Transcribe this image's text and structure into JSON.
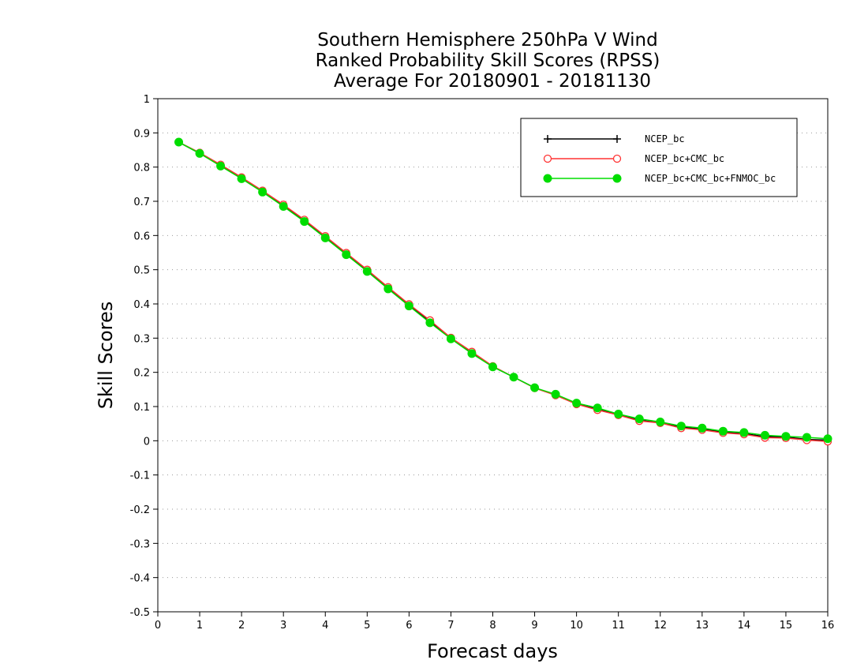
{
  "chart_data": {
    "type": "line",
    "title": [
      "Southern Hemisphere 250hPa V Wind",
      "Ranked Probability Skill Scores (RPSS)",
      "Average For 20180901 - 20181130"
    ],
    "xlabel": "Forecast days",
    "ylabel": "Skill Scores",
    "xlim": [
      0,
      16
    ],
    "ylim": [
      -0.5,
      1
    ],
    "xticks": [
      0,
      1,
      2,
      3,
      4,
      5,
      6,
      7,
      8,
      9,
      10,
      11,
      12,
      13,
      14,
      15,
      16
    ],
    "xtick_labels": [
      "0",
      "1",
      "2",
      "3",
      "4",
      "5",
      "6",
      "7",
      "8",
      "9",
      "10",
      "11",
      "12",
      "13",
      "14",
      "15",
      "16"
    ],
    "yticks": [
      -0.5,
      -0.4,
      -0.3,
      -0.2,
      -0.1,
      0,
      0.1,
      0.2,
      0.3,
      0.4,
      0.5,
      0.6,
      0.7,
      0.8,
      0.9,
      1
    ],
    "ytick_labels": [
      "-0.5",
      "-0.4",
      "-0.3",
      "-0.2",
      "-0.1",
      "0",
      "0.1",
      "0.2",
      "0.3",
      "0.4",
      "0.5",
      "0.6",
      "0.7",
      "0.8",
      "0.9",
      "1"
    ],
    "grid": "horizontal dotted",
    "legend_position": "top-right",
    "x": [
      0.5,
      1,
      1.5,
      2,
      2.5,
      3,
      3.5,
      4,
      4.5,
      5,
      5.5,
      6,
      6.5,
      7,
      7.5,
      8,
      8.5,
      9,
      9.5,
      10,
      10.5,
      11,
      11.5,
      12,
      12.5,
      13,
      13.5,
      14,
      14.5,
      15,
      15.5,
      16
    ],
    "series": [
      {
        "name": "NCEP_bc",
        "color": "#000000",
        "marker": "plus",
        "values": [
          0.873,
          0.84,
          0.805,
          0.768,
          0.728,
          0.687,
          0.643,
          0.595,
          0.546,
          0.497,
          0.446,
          0.396,
          0.348,
          0.3,
          0.257,
          0.217,
          0.186,
          0.155,
          0.134,
          0.108,
          0.092,
          0.076,
          0.06,
          0.053,
          0.04,
          0.034,
          0.025,
          0.021,
          0.012,
          0.011,
          0.004,
          0.002
        ]
      },
      {
        "name": "NCEP_bc+CMC_bc",
        "color": "#ff3333",
        "marker": "open-circle",
        "values": [
          0.873,
          0.842,
          0.807,
          0.77,
          0.731,
          0.69,
          0.646,
          0.598,
          0.549,
          0.5,
          0.449,
          0.399,
          0.352,
          0.301,
          0.26,
          0.218,
          0.186,
          0.154,
          0.133,
          0.107,
          0.09,
          0.075,
          0.058,
          0.052,
          0.037,
          0.032,
          0.023,
          0.019,
          0.009,
          0.008,
          0.002,
          -0.002
        ]
      },
      {
        "name": "NCEP_bc+CMC_bc+FNMOC_bc",
        "color": "#00dd00",
        "marker": "filled-circle",
        "values": [
          0.873,
          0.84,
          0.803,
          0.766,
          0.727,
          0.685,
          0.641,
          0.593,
          0.544,
          0.495,
          0.444,
          0.394,
          0.345,
          0.298,
          0.255,
          0.216,
          0.186,
          0.155,
          0.136,
          0.11,
          0.096,
          0.078,
          0.064,
          0.055,
          0.043,
          0.037,
          0.028,
          0.024,
          0.016,
          0.013,
          0.01,
          0.006
        ]
      }
    ]
  }
}
